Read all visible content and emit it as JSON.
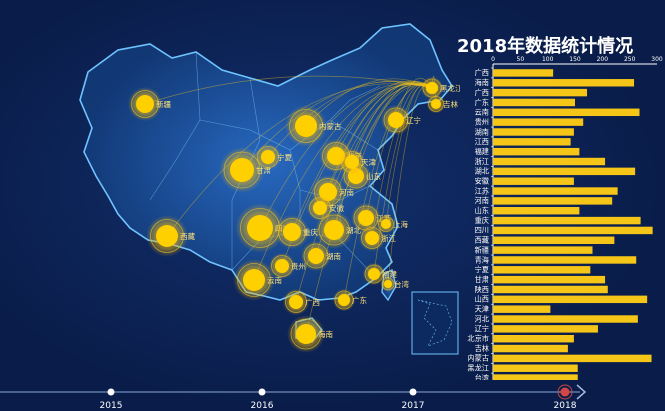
{
  "chart_data": {
    "type": "bar",
    "title": "2018年数据统计情况",
    "orientation": "horizontal",
    "xlim": [
      0,
      300
    ],
    "xticks": [
      0,
      50,
      100,
      150,
      200,
      250,
      300
    ],
    "bar_color": "#f5c518",
    "categories": [
      "广西",
      "海南",
      "广西",
      "广东",
      "云南",
      "贵州",
      "湖南",
      "江西",
      "福建",
      "浙江",
      "湖北",
      "安徽",
      "江苏",
      "河南",
      "山东",
      "重庆",
      "四川",
      "西藏",
      "新疆",
      "青海",
      "宁夏",
      "甘肃",
      "陕西",
      "山西",
      "天津",
      "河北",
      "辽宁",
      "北京市",
      "吉林",
      "内蒙古",
      "黑龙江",
      "台湾"
    ],
    "values": [
      110,
      258,
      172,
      150,
      268,
      165,
      148,
      142,
      158,
      205,
      260,
      148,
      228,
      218,
      158,
      270,
      292,
      222,
      182,
      262,
      178,
      205,
      210,
      282,
      105,
      265,
      192,
      148,
      137,
      290,
      155,
      155
    ]
  },
  "map": {
    "labels": [
      {
        "text": "新疆"
      },
      {
        "text": "西藏"
      },
      {
        "text": "黑龙江"
      },
      {
        "text": "吉林"
      },
      {
        "text": "辽宁"
      },
      {
        "text": "内蒙古"
      },
      {
        "text": "甘肃"
      },
      {
        "text": "宁夏"
      },
      {
        "text": "四川"
      },
      {
        "text": "重庆"
      },
      {
        "text": "湖北"
      },
      {
        "text": "河南"
      },
      {
        "text": "湖南"
      },
      {
        "text": "江苏"
      },
      {
        "text": "上海"
      },
      {
        "text": "浙江"
      },
      {
        "text": "福建"
      },
      {
        "text": "台湾"
      },
      {
        "text": "广西"
      },
      {
        "text": "广东"
      },
      {
        "text": "云南"
      },
      {
        "text": "贵州"
      },
      {
        "text": "海南"
      },
      {
        "text": "山东"
      },
      {
        "text": "安徽"
      },
      {
        "text": "北京"
      },
      {
        "text": "天津"
      }
    ]
  },
  "timeline": {
    "years": [
      "2015",
      "2016",
      "2017",
      "2018"
    ],
    "active_year": "2018"
  },
  "colors": {
    "background": "#0b1f4d",
    "accent": "#f5c518",
    "map_fill": "#174a8c",
    "map_stroke": "#6fc3ff"
  }
}
